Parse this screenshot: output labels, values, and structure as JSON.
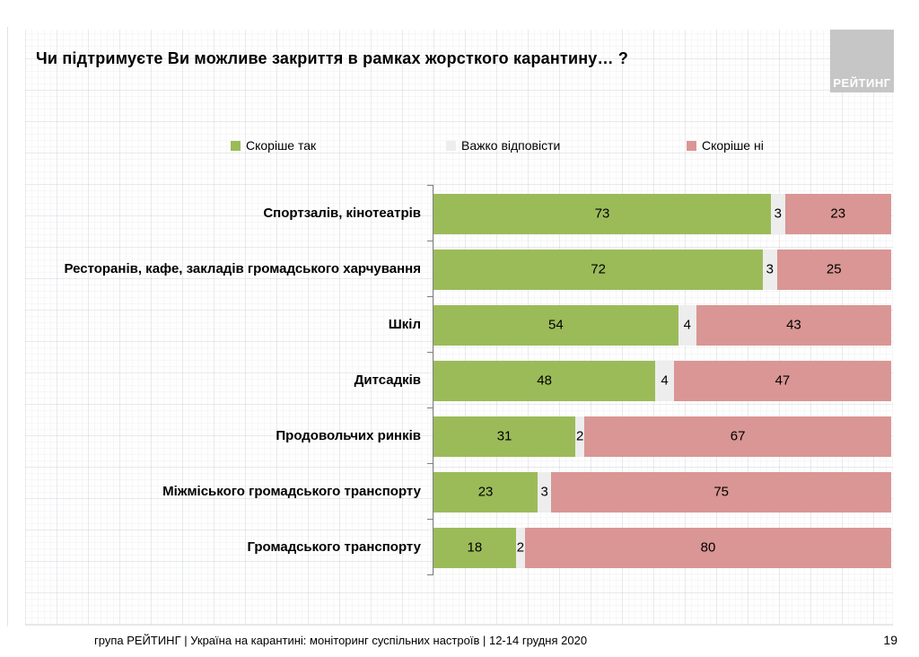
{
  "slide": {
    "title": "Чи підтримуєте Ви можливе закриття в рамках жорсткого карантину… ?",
    "logo_text": "РЕЙТИНГ",
    "footer": "група РЕЙТИНГ | Україна на карантині: моніторинг суспільних настроїв | 12-14 грудня 2020",
    "page_number": "19"
  },
  "colors": {
    "yes_green": "#9BBB59",
    "hard_gray": "#EDEDED",
    "no_pink": "#D99694",
    "axis": "#7F7F7F",
    "logo_bg": "#C6C6C6",
    "logo_text": "#FFFFFF"
  },
  "chart_data": {
    "type": "bar",
    "orientation": "horizontal",
    "stacked": true,
    "title": "Чи підтримуєте Ви можливе закриття в рамках жорсткого карантину… ?",
    "categories": [
      "Спортзалів, кінотеатрів",
      "Ресторанів, кафе, закладів громадського харчування",
      "Шкіл",
      "Дитсадків",
      "Продовольчих ринків",
      "Міжміського громадського транспорту",
      "Громадського транспорту"
    ],
    "series": [
      {
        "name": "Скоріше так",
        "color": "#9BBB59",
        "values": [
          73,
          72,
          54,
          48,
          31,
          23,
          18
        ]
      },
      {
        "name": "Важко відповісти",
        "color": "#EDEDED",
        "values": [
          3,
          3,
          4,
          4,
          2,
          3,
          2
        ]
      },
      {
        "name": "Скоріше ні",
        "color": "#D99694",
        "values": [
          23,
          25,
          43,
          47,
          67,
          75,
          80
        ]
      }
    ],
    "xlim": [
      0,
      100
    ],
    "grid": false,
    "legend_position": "top",
    "value_labels": "inside"
  }
}
